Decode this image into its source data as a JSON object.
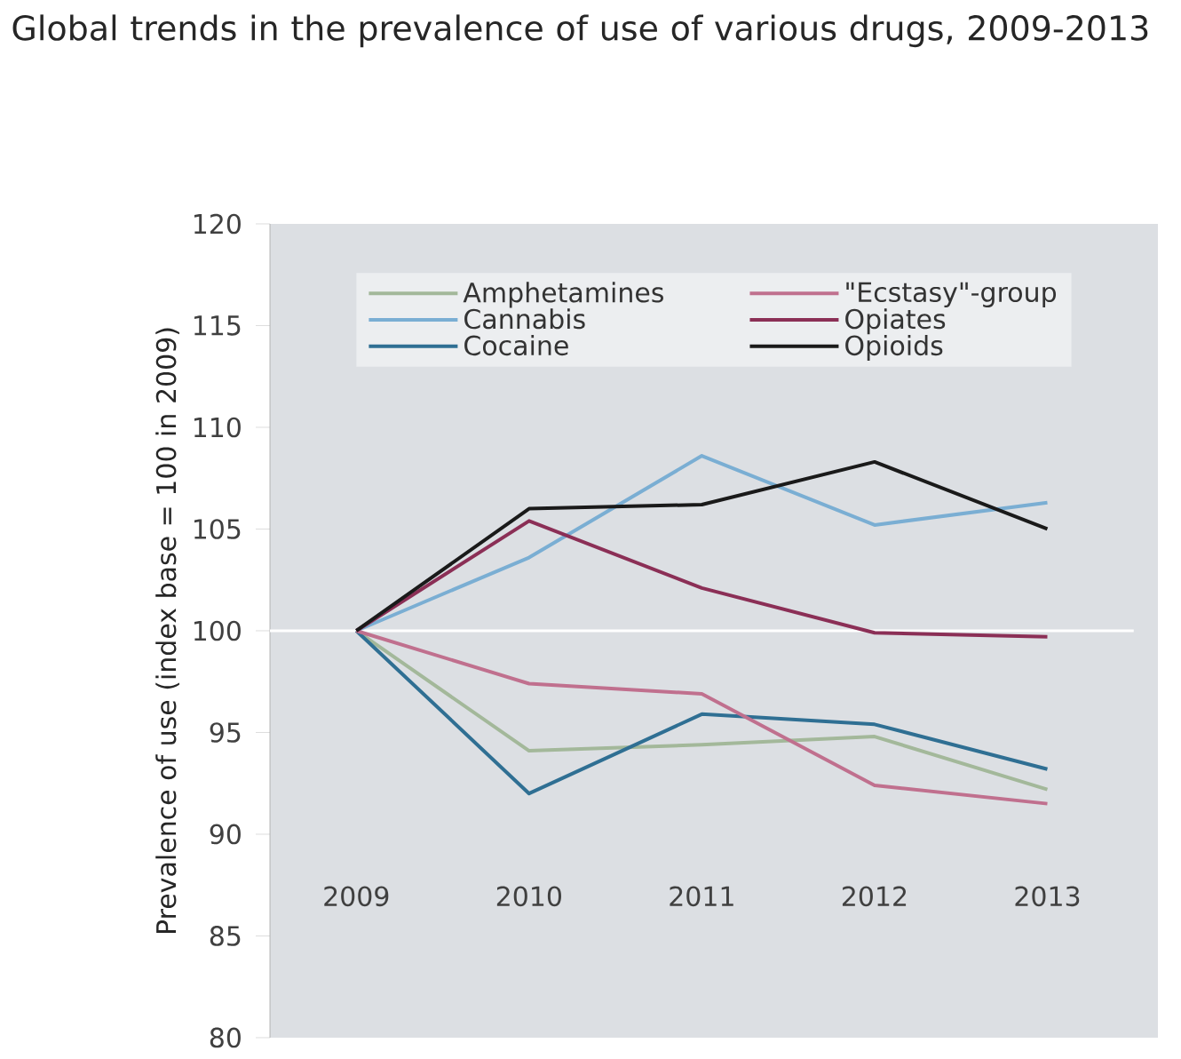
{
  "chart_data": {
    "type": "line",
    "title": "Global trends in the prevalence of use of various drugs, 2009-2013",
    "ylabel": "Prevalence of use (index base = 100 in 2009)",
    "categories": [
      "2009",
      "2010",
      "2011",
      "2012",
      "2013"
    ],
    "series": [
      {
        "name": "Amphetamines",
        "color": "#a3b89a",
        "values": [
          100,
          94.1,
          94.4,
          94.8,
          92.2
        ]
      },
      {
        "name": "Cannabis",
        "color": "#7aaed3",
        "values": [
          100,
          103.6,
          108.6,
          105.2,
          106.3
        ]
      },
      {
        "name": "Cocaine",
        "color": "#2f6f93",
        "values": [
          100,
          92.0,
          95.9,
          95.4,
          93.2
        ]
      },
      {
        "name": "\"Ecstasy\"-group",
        "color": "#c0708e",
        "values": [
          100,
          97.4,
          96.9,
          92.4,
          91.5
        ]
      },
      {
        "name": "Opiates",
        "color": "#8b2f56",
        "values": [
          100,
          105.4,
          102.1,
          99.9,
          99.7
        ]
      },
      {
        "name": "Opioids",
        "color": "#1a1a1a",
        "values": [
          100,
          106.0,
          106.2,
          108.3,
          105.0
        ]
      }
    ],
    "ylim": [
      80,
      120
    ],
    "yticks": [
      80,
      85,
      90,
      95,
      100,
      105,
      110,
      115,
      120
    ],
    "ref_lines": [
      {
        "axis": "y",
        "value": 100,
        "color": "#ffffff"
      }
    ],
    "legend": "top",
    "marker": "none",
    "line_style": "solid"
  }
}
